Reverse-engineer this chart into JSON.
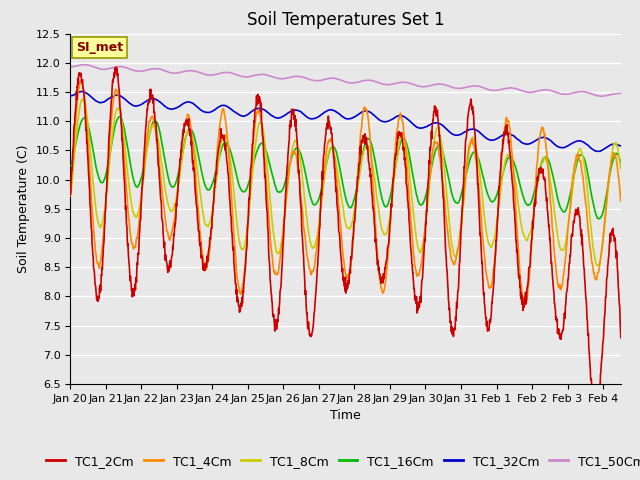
{
  "title": "Soil Temperatures Set 1",
  "xlabel": "Time",
  "ylabel": "Soil Temperature (C)",
  "ylim": [
    6.5,
    12.5
  ],
  "series_colors": {
    "TC1_2Cm": "#cc0000",
    "TC1_4Cm": "#ff8800",
    "TC1_8Cm": "#cccc00",
    "TC1_16Cm": "#00bb00",
    "TC1_32Cm": "#0000cc",
    "TC1_50Cm": "#cc88cc"
  },
  "annotation_text": "SI_met",
  "annotation_color": "#880000",
  "annotation_bg": "#ffff99",
  "annotation_border": "#999900",
  "background_color": "#e8e8e8",
  "grid_color": "#ffffff",
  "title_fontsize": 12,
  "axis_label_fontsize": 9,
  "tick_label_fontsize": 8,
  "legend_fontsize": 9,
  "line_width": 1.2,
  "x_tick_labels": [
    "Jan 20",
    "Jan 21",
    "Jan 22",
    "Jan 23",
    "Jan 24",
    "Jan 25",
    "Jan 26",
    "Jan 27",
    "Jan 28",
    "Jan 29",
    "Jan 30",
    "Jan 31",
    "Feb 1",
    "Feb 2",
    "Feb 3",
    "Feb 4"
  ],
  "n_days": 15.5,
  "n_points": 1550,
  "yticks": [
    6.5,
    7.0,
    7.5,
    8.0,
    8.5,
    9.0,
    9.5,
    10.0,
    10.5,
    11.0,
    11.5,
    12.0,
    12.5
  ]
}
